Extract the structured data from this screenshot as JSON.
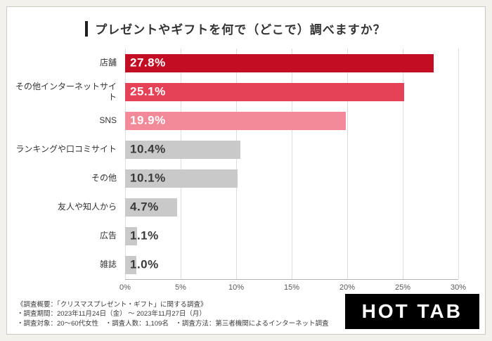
{
  "title": "プレゼントやギフトを何で（どこで）調べますか？",
  "chart_data": {
    "type": "bar",
    "orientation": "horizontal",
    "title": "プレゼントやギフトを何で（どこで）調べますか？",
    "categories": [
      "店舗",
      "その他インターネットサイト",
      "SNS",
      "ランキングや口コミサイト",
      "その他",
      "友人や知人から",
      "広告",
      "雑誌"
    ],
    "values": [
      27.8,
      25.1,
      19.9,
      10.4,
      10.1,
      4.7,
      1.1,
      1.0
    ],
    "value_labels": [
      "27.8%",
      "25.1%",
      "19.9%",
      "10.4%",
      "10.1%",
      "4.7%",
      "1.1%",
      "1.0%"
    ],
    "bar_colors": [
      "#c30d23",
      "#e64257",
      "#f28a9a",
      "#c9c9c9",
      "#c9c9c9",
      "#c9c9c9",
      "#c9c9c9",
      "#c9c9c9"
    ],
    "value_label_colors": [
      "#ffffff",
      "#ffffff",
      "#ffffff",
      "#3a3a3a",
      "#3a3a3a",
      "#3a3a3a",
      "#3a3a3a",
      "#3a3a3a"
    ],
    "xlim": [
      0,
      30
    ],
    "x_ticks": [
      "0%",
      "5%",
      "10%",
      "15%",
      "20%",
      "25%",
      "30%"
    ],
    "grid": true,
    "legend": "none"
  },
  "footer": {
    "line1": "《調査概要：「クリスマスプレゼント・ギフト」に関する調査》",
    "line2": "・調査期間：2023年11月24日（金） ～ 2023年11月27日（月）",
    "line3": "・調査対象：20～60代女性　・調査人数：1,109名　・調査方法：第三者機関によるインターネット調査"
  },
  "logo": {
    "text": "HOT TAB",
    "bg": "#000000",
    "fg": "#ffffff"
  }
}
